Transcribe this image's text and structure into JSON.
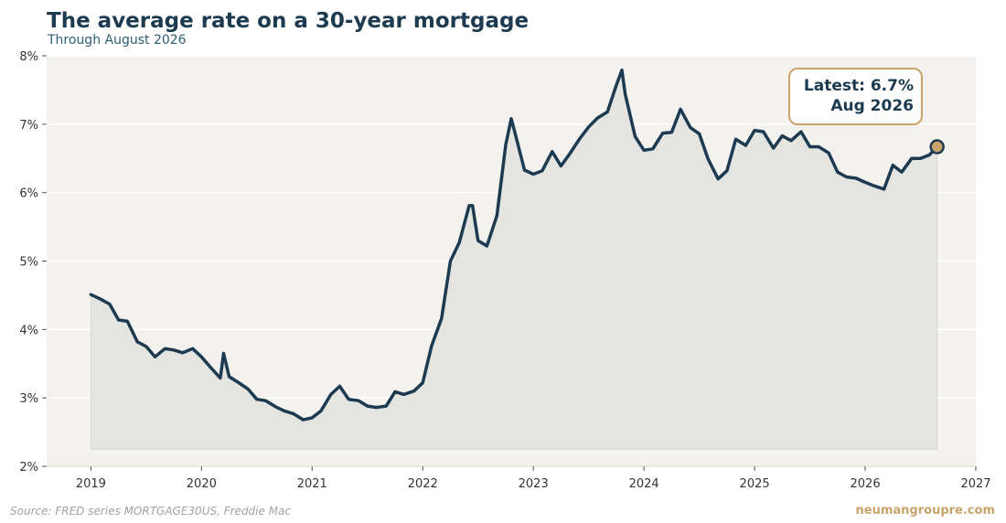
{
  "title": "The average rate on a 30-year mortgage",
  "subtitle": "Through August 2026",
  "source": "Source: FRED series MORTGAGE30US, Freddie Mac",
  "brand": "neumangroupre.com",
  "colors": {
    "line": "#1c3a50",
    "fill": "#e4e4e1",
    "plot_bg": "#f4f2ee",
    "marker": "#c9a46a",
    "grid": "#ffffff"
  },
  "chart_data": {
    "type": "line",
    "title": "The average rate on a 30-year mortgage",
    "subtitle": "Through August 2026",
    "xlabel": "",
    "ylabel": "",
    "xlim": [
      2018.6,
      2027.0
    ],
    "ylim": [
      2,
      8
    ],
    "x_ticks": [
      "2019",
      "2020",
      "2021",
      "2022",
      "2023",
      "2024",
      "2025",
      "2026",
      "2027"
    ],
    "x_tick_values": [
      2019,
      2020,
      2021,
      2022,
      2023,
      2024,
      2025,
      2026,
      2027
    ],
    "y_ticks": [
      "2%",
      "3%",
      "4%",
      "5%",
      "6%",
      "7%",
      "8%"
    ],
    "y_tick_values": [
      2,
      3,
      4,
      5,
      6,
      7,
      8
    ],
    "grid": "horizontal",
    "annotation": {
      "line1": "Latest: 6.7%",
      "line2": "Aug 2026",
      "x": 2026.65,
      "y": 6.67
    },
    "series": [
      {
        "x": [
          2019.0,
          2019.08,
          2019.17,
          2019.25,
          2019.33,
          2019.42,
          2019.5,
          2019.58,
          2019.67,
          2019.75,
          2019.83,
          2019.92,
          2020.0,
          2020.08,
          2020.17,
          2020.2,
          2020.25,
          2020.33,
          2020.42,
          2020.5,
          2020.58,
          2020.67,
          2020.75,
          2020.83,
          2020.92,
          2021.0,
          2021.08,
          2021.17,
          2021.25,
          2021.33,
          2021.42,
          2021.5,
          2021.58,
          2021.67,
          2021.75,
          2021.83,
          2021.92,
          2022.0,
          2022.08,
          2022.17,
          2022.25,
          2022.33,
          2022.42,
          2022.45,
          2022.5,
          2022.58,
          2022.67,
          2022.75,
          2022.8,
          2022.83,
          2022.92,
          2023.0,
          2023.08,
          2023.17,
          2023.25,
          2023.33,
          2023.42,
          2023.5,
          2023.58,
          2023.67,
          2023.75,
          2023.8,
          2023.83,
          2023.92,
          2024.0,
          2024.08,
          2024.17,
          2024.25,
          2024.33,
          2024.42,
          2024.5,
          2024.58,
          2024.67,
          2024.75,
          2024.83,
          2024.92,
          2025.0,
          2025.08,
          2025.17,
          2025.25,
          2025.33,
          2025.42,
          2025.5,
          2025.58,
          2025.67,
          2025.75,
          2025.83,
          2025.92,
          2026.0,
          2026.08,
          2026.17,
          2026.25,
          2026.33,
          2026.42,
          2026.5,
          2026.58,
          2026.65
        ],
        "y": [
          4.51,
          4.45,
          4.37,
          4.14,
          4.12,
          3.82,
          3.75,
          3.6,
          3.72,
          3.7,
          3.66,
          3.72,
          3.6,
          3.45,
          3.29,
          3.65,
          3.31,
          3.23,
          3.13,
          2.98,
          2.96,
          2.87,
          2.81,
          2.77,
          2.68,
          2.71,
          2.81,
          3.05,
          3.17,
          2.98,
          2.96,
          2.88,
          2.86,
          2.88,
          3.09,
          3.05,
          3.1,
          3.22,
          3.76,
          4.16,
          5.0,
          5.27,
          5.81,
          5.81,
          5.3,
          5.22,
          5.66,
          6.7,
          7.08,
          6.9,
          6.33,
          6.27,
          6.32,
          6.6,
          6.39,
          6.57,
          6.79,
          6.96,
          7.09,
          7.18,
          7.57,
          7.79,
          7.44,
          6.82,
          6.62,
          6.64,
          6.87,
          6.88,
          7.22,
          6.95,
          6.86,
          6.49,
          6.2,
          6.32,
          6.78,
          6.69,
          6.91,
          6.89,
          6.65,
          6.83,
          6.76,
          6.89,
          6.67,
          6.67,
          6.58,
          6.3,
          6.23,
          6.21,
          6.15,
          6.1,
          6.05,
          6.4,
          6.3,
          6.5,
          6.5,
          6.55,
          6.67
        ]
      }
    ]
  }
}
